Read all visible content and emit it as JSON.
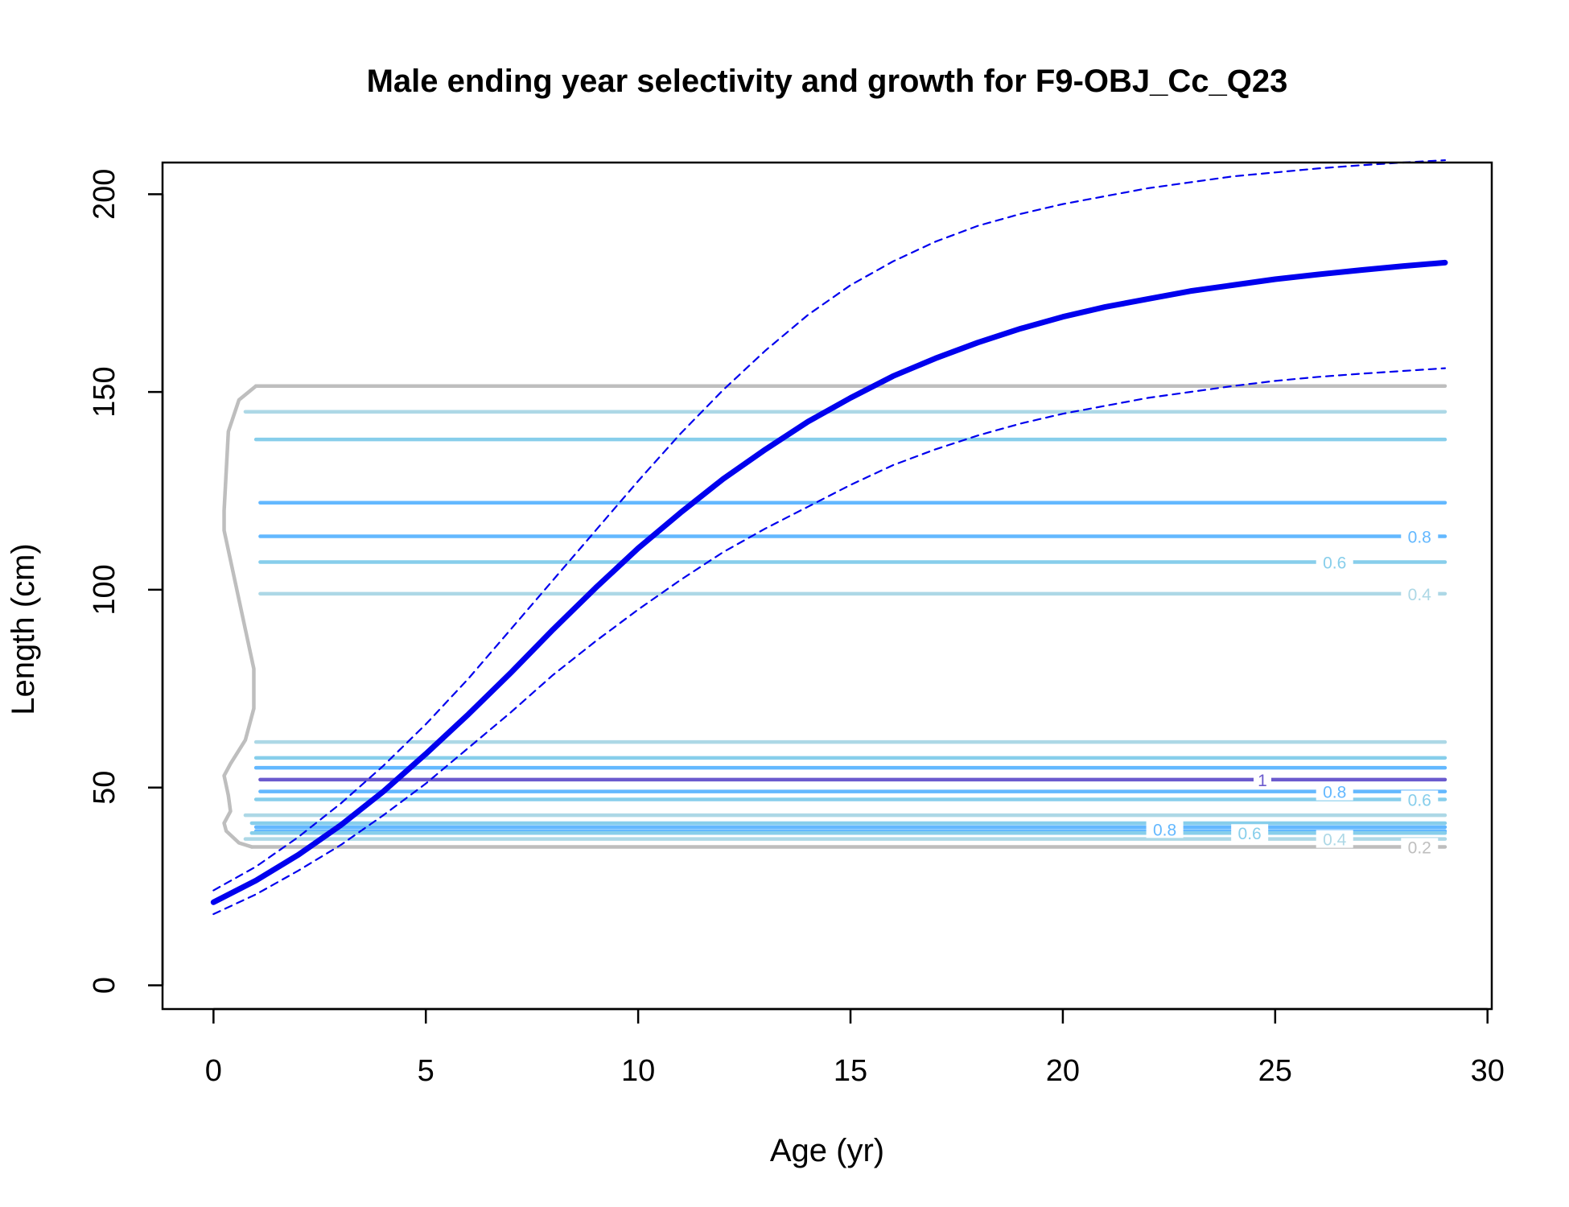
{
  "chart_data": {
    "type": "line",
    "title": "Male ending year selectivity and growth for F9-OBJ_Cc_Q23",
    "xlabel": "Age (yr)",
    "ylabel": "Length (cm)",
    "xlim": [
      -1.2,
      30.1
    ],
    "ylim": [
      -6,
      208
    ],
    "x_ticks": [
      0,
      5,
      10,
      15,
      20,
      25,
      30
    ],
    "y_ticks": [
      0,
      50,
      100,
      150,
      200
    ],
    "grid": false,
    "legend": "none",
    "colors": {
      "growth": "#0000ee",
      "level_0.2": "#bebebe",
      "level_0.4": "#add8e6",
      "level_0.6": "#87ceeb",
      "level_0.8": "#63b8ff",
      "level_1": "#6a5acd"
    },
    "series": [
      {
        "role": "mean",
        "x": [
          0,
          1,
          2,
          3,
          4,
          5,
          6,
          7,
          8,
          9,
          10,
          11,
          12,
          13,
          14,
          15,
          16,
          17,
          18,
          19,
          20,
          21,
          22,
          23,
          24,
          25,
          26,
          27,
          28,
          29
        ],
        "y": [
          21,
          26.5,
          33,
          40.5,
          49,
          58.5,
          68.5,
          79,
          90,
          100.5,
          110.5,
          119.5,
          128,
          135.5,
          142.5,
          148.5,
          154,
          158.5,
          162.5,
          166,
          169,
          171.5,
          173.5,
          175.5,
          177,
          178.5,
          179.7,
          180.8,
          181.8,
          182.7
        ]
      },
      {
        "role": "upper",
        "x": [
          0,
          1,
          2,
          3,
          4,
          5,
          6,
          7,
          8,
          9,
          10,
          11,
          12,
          13,
          14,
          15,
          16,
          17,
          18,
          19,
          20,
          21,
          22,
          23,
          24,
          25,
          26,
          27,
          28,
          29
        ],
        "y": [
          24,
          30,
          37.5,
          46,
          55.5,
          66,
          77.5,
          90,
          102.5,
          115,
          127.5,
          139.5,
          150.5,
          160.5,
          169.5,
          177,
          183,
          188,
          192,
          195,
          197.5,
          199.5,
          201.5,
          203,
          204.5,
          205.5,
          206.5,
          207.3,
          208,
          208.6
        ]
      },
      {
        "role": "lower",
        "x": [
          0,
          1,
          2,
          3,
          4,
          5,
          6,
          7,
          8,
          9,
          10,
          11,
          12,
          13,
          14,
          15,
          16,
          17,
          18,
          19,
          20,
          21,
          22,
          23,
          24,
          25,
          26,
          27,
          28,
          29
        ],
        "y": [
          18,
          23,
          29,
          35.5,
          43,
          51,
          60,
          69,
          78.5,
          87,
          95,
          102.5,
          109.5,
          115.5,
          121,
          126.5,
          131.5,
          135.5,
          139,
          142,
          144.5,
          146.5,
          148.5,
          150,
          151.5,
          152.8,
          153.8,
          154.6,
          155.3,
          156
        ]
      }
    ],
    "contours": [
      {
        "level": "0.2",
        "y": 151.5,
        "x_start": 1.0,
        "x_end": 29
      },
      {
        "level": "0.4",
        "y": 145,
        "x_start": 0.75,
        "x_end": 29
      },
      {
        "level": "0.6",
        "y": 138,
        "x_start": 1.0,
        "x_end": 29
      },
      {
        "level": "0.8",
        "y": 122,
        "x_start": 1.1,
        "x_end": 29
      },
      {
        "level": "0.8",
        "y": 113.5,
        "x_start": 1.1,
        "x_end": 29
      },
      {
        "level": "0.6",
        "y": 107,
        "x_start": 1.1,
        "x_end": 29
      },
      {
        "level": "0.4",
        "y": 99,
        "x_start": 1.1,
        "x_end": 29
      },
      {
        "level": "0.4",
        "y": 61.5,
        "x_start": 1.0,
        "x_end": 29
      },
      {
        "level": "0.6",
        "y": 57.5,
        "x_start": 1.0,
        "x_end": 29
      },
      {
        "level": "0.8",
        "y": 55,
        "x_start": 1.0,
        "x_end": 29
      },
      {
        "level": "1",
        "y": 52,
        "x_start": 1.1,
        "x_end": 29
      },
      {
        "level": "0.8",
        "y": 49,
        "x_start": 1.1,
        "x_end": 29
      },
      {
        "level": "0.6",
        "y": 47,
        "x_start": 1.0,
        "x_end": 29
      },
      {
        "level": "0.4",
        "y": 43,
        "x_start": 0.75,
        "x_end": 29
      },
      {
        "level": "0.6",
        "y": 41,
        "x_start": 0.9,
        "x_end": 29
      },
      {
        "level": "0.8",
        "y": 40,
        "x_start": 1.0,
        "x_end": 29
      },
      {
        "level": "0.8",
        "y": 39,
        "x_start": 1.0,
        "x_end": 29
      },
      {
        "level": "0.6",
        "y": 38.5,
        "x_start": 0.9,
        "x_end": 29
      },
      {
        "level": "0.4",
        "y": 37,
        "x_start": 0.75,
        "x_end": 29
      },
      {
        "level": "0.2",
        "y": 35,
        "x_start": 0.9,
        "x_end": 29
      }
    ],
    "contour_outline": {
      "level": "0.2",
      "x": [
        1.0,
        0.6,
        0.35,
        0.25,
        0.25,
        0.45,
        0.75,
        0.95,
        0.95,
        0.75,
        0.4,
        0.25,
        0.35,
        0.4,
        0.25,
        0.3,
        0.6,
        0.9
      ],
      "y": [
        151.5,
        148,
        140,
        120,
        115,
        105,
        90,
        80,
        70,
        62,
        56,
        53,
        48,
        44,
        41,
        39,
        36,
        35
      ]
    },
    "contour_labels": [
      {
        "text": "0.8",
        "x": 28.4,
        "y": 113.5,
        "level": "0.8"
      },
      {
        "text": "0.6",
        "x": 26.4,
        "y": 107,
        "level": "0.6"
      },
      {
        "text": "0.4",
        "x": 28.4,
        "y": 99,
        "level": "0.4"
      },
      {
        "text": "1",
        "x": 24.7,
        "y": 52,
        "level": "1"
      },
      {
        "text": "0.8",
        "x": 26.4,
        "y": 49,
        "level": "0.8"
      },
      {
        "text": "0.6",
        "x": 28.4,
        "y": 47,
        "level": "0.6"
      },
      {
        "text": "0.8",
        "x": 22.4,
        "y": 39.5,
        "level": "0.8"
      },
      {
        "text": "0.6",
        "x": 24.4,
        "y": 38.5,
        "level": "0.6"
      },
      {
        "text": "0.4",
        "x": 26.4,
        "y": 37,
        "level": "0.4"
      },
      {
        "text": "0.2",
        "x": 28.4,
        "y": 35,
        "level": "0.2"
      }
    ]
  }
}
